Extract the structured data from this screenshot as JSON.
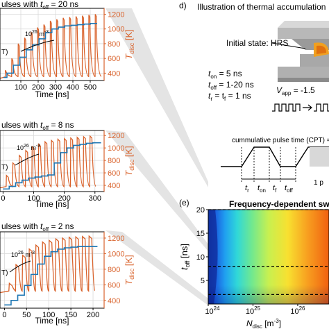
{
  "figure_text": {
    "panel_d_letter": "d)",
    "panel_d_title": "Illustration of thermal accumulation",
    "initial_state": "Initial state: HRS",
    "params": [
      "t",
      "t",
      "t",
      "= 5 ns",
      "= 1-20 ns",
      "= 1 ns"
    ],
    "param_t_on": "t",
    "param_t_on_sub": "on",
    "param_t_on_val": " = 5 ns",
    "param_t_off": "t",
    "param_t_off_sub": "off",
    "param_t_off_val": " = 1-20 ns",
    "param_tr": "t",
    "param_tr_sub": "r",
    "param_tr_mid": " = t",
    "param_tf_sub": "f",
    "param_tr_val": " = 1 ns",
    "v_app": "V",
    "v_app_sub": "app",
    "v_app_val": " = -1.5",
    "cpt_label": "cummulative pulse time (CPT) = a",
    "seg_tr": "t",
    "seg_tr_sub": "r",
    "seg_ton": "t",
    "seg_ton_sub": "on",
    "seg_tf": "t",
    "seg_tf_sub": "f",
    "seg_toff": "t",
    "seg_toff_sub": "off",
    "seg_extra": "1 p",
    "panel_e_letter": "(e)",
    "panel_e_title": "Frequency-dependent swit",
    "density_note": "10",
    "density_note_exp": "26",
    "density_note_unit": " m",
    "density_note_unit_exp": "-3",
    "t_partial": "T)"
  },
  "colors": {
    "blue": "#1f77b4",
    "orange": "#d9622b",
    "grid": "#d9d9d9"
  },
  "chart_data": [
    {
      "type": "line",
      "title": "ulses with t_off = 20 ns",
      "title_parts": [
        "ulses with ",
        "t",
        "off",
        " = 20 ns"
      ],
      "xlabel": "Time [ns]",
      "ylabel_right": "T_disc [K]",
      "ylabel_parts": [
        "T",
        "disc",
        " [K]"
      ],
      "xlim": [
        -20,
        580
      ],
      "xticks": [
        100,
        200,
        300,
        400,
        500
      ],
      "ylim_right": [
        300,
        1280
      ],
      "yticks_right": [
        400,
        600,
        800,
        1000,
        1200
      ],
      "series": [
        {
          "name": "T_disc",
          "axis": "right",
          "color": "#d9622b",
          "pulse_period_ns": 37,
          "pulse_width_ns": 7,
          "peaks": [
            440,
            600,
            800,
            880,
            960,
            1020,
            1060,
            1110,
            1130,
            1150,
            1160,
            1170,
            1180,
            1190,
            1200
          ],
          "baseline": 330
        },
        {
          "name": "N_disc",
          "axis": "left",
          "color": "#1f77b4",
          "steps_x": [
            0,
            20,
            57,
            94,
            131,
            168,
            205,
            242,
            279,
            316,
            353,
            390,
            427,
            464,
            501,
            540
          ],
          "steps_y": [
            0.05,
            0.12,
            0.25,
            0.38,
            0.5,
            0.58,
            0.68,
            0.78,
            0.84,
            0.87,
            0.89,
            0.9,
            0.91,
            0.92,
            0.93,
            0.93
          ]
        }
      ]
    },
    {
      "type": "line",
      "title": "ulses with t_off = 8 ns",
      "title_parts": [
        "ulses with ",
        "t",
        "off",
        " = 8 ns"
      ],
      "xlabel": "Time [ns]",
      "ylabel_right": "T_disc [K]",
      "ylabel_parts": [
        "T",
        "disc",
        " [K]"
      ],
      "xlim": [
        -10,
        330
      ],
      "xticks": [
        0,
        100,
        200,
        300
      ],
      "xticklabels": [
        "0",
        "100",
        "200",
        "300"
      ],
      "ylim_right": [
        300,
        1280
      ],
      "yticks_right": [
        400,
        600,
        800,
        1000,
        1200
      ],
      "series": [
        {
          "name": "T_disc",
          "axis": "right",
          "color": "#d9622b",
          "pulse_period_ns": 21,
          "pulse_width_ns": 7,
          "peaks": [
            560,
            760,
            880,
            960,
            1020,
            1060,
            1100,
            1120,
            1140,
            1150,
            1160,
            1170,
            1180,
            1190
          ],
          "baseline": 360
        },
        {
          "name": "N_disc",
          "axis": "left",
          "color": "#1f77b4",
          "steps_x": [
            0,
            20,
            41,
            62,
            83,
            104,
            125,
            146,
            167,
            188,
            209,
            230,
            251,
            272,
            293,
            320
          ],
          "steps_y": [
            0.05,
            0.1,
            0.17,
            0.22,
            0.26,
            0.28,
            0.3,
            0.32,
            0.55,
            0.75,
            0.84,
            0.89,
            0.91,
            0.93,
            0.94,
            0.94
          ]
        }
      ]
    },
    {
      "type": "line",
      "title": "ulses with t_off = 2 ns",
      "title_parts": [
        "ulses with ",
        "t",
        "off",
        " = 2 ns"
      ],
      "xlabel": "Time [ns]",
      "ylabel_right": "T_disc [K]",
      "ylabel_parts": [
        "T",
        "disc",
        " [K]"
      ],
      "xlim": [
        -10,
        225
      ],
      "xticks": [
        0,
        50,
        100,
        150,
        200
      ],
      "xticklabels": [
        "0",
        "50",
        "100",
        "150",
        "200"
      ],
      "ylim_right": [
        300,
        1280
      ],
      "yticks_right": [
        400,
        600,
        800,
        1000,
        1200
      ],
      "series": [
        {
          "name": "T_disc",
          "axis": "right",
          "color": "#d9622b",
          "pulse_period_ns": 15,
          "pulse_width_ns": 7,
          "peaks": [
            620,
            860,
            980,
            1060,
            1110,
            1150,
            1170,
            1190,
            1200,
            1210,
            1215,
            1220,
            1225
          ],
          "baseline": 500
        },
        {
          "name": "N_disc",
          "axis": "left",
          "color": "#1f77b4",
          "steps_x": [
            0,
            15,
            30,
            45,
            60,
            75,
            90,
            105,
            120,
            135,
            150,
            165,
            180,
            210
          ],
          "steps_y": [
            0.05,
            0.12,
            0.2,
            0.35,
            0.52,
            0.68,
            0.8,
            0.87,
            0.91,
            0.93,
            0.94,
            0.95,
            0.95,
            0.95
          ]
        }
      ]
    },
    {
      "type": "heatmap",
      "title": "Frequency-dependent swit",
      "xlabel": "N_disc [m^-3]",
      "xlabel_parts": [
        "N",
        "disc",
        " [m",
        "-3",
        "]"
      ],
      "ylabel": "t_off [ns]",
      "ylabel_parts": [
        "t",
        "off",
        " [ns]"
      ],
      "xscale": "log",
      "xlim": [
        1e+24,
        5e+26
      ],
      "xticks": [
        1e+24,
        1e+25,
        1e+26
      ],
      "xticklabels_base": [
        "10",
        "10",
        "10"
      ],
      "xticklabels_exp": [
        "24",
        "25",
        "26"
      ],
      "ylim": [
        0,
        20
      ],
      "yticks": [
        5,
        10,
        15,
        20
      ],
      "yticklabels": [
        "5",
        "10",
        "15",
        "20"
      ],
      "dashed_lines_y": [
        20,
        8,
        2
      ],
      "colormap": "jet"
    }
  ]
}
